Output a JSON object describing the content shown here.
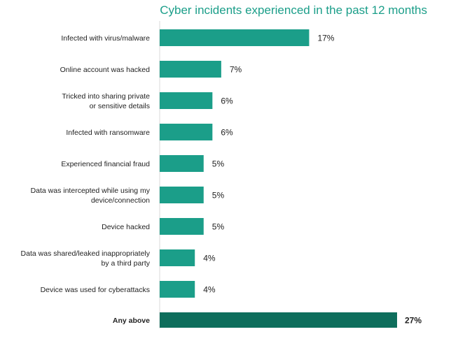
{
  "chart_data": {
    "type": "bar",
    "orientation": "horizontal",
    "title": "Cyber incidents experienced in the past 12 months",
    "value_suffix": "%",
    "xlim": [
      0,
      27
    ],
    "colors": {
      "bar": "#1b9e89",
      "highlight": "#0e6e5c",
      "title": "#1b9e89"
    },
    "categories": [
      [
        "Infected with virus/malware"
      ],
      [
        "Online account was hacked"
      ],
      [
        "Tricked into sharing private",
        "or sensitive details"
      ],
      [
        "Infected with ransomware"
      ],
      [
        "Experienced financial fraud"
      ],
      [
        "Data was intercepted while using my",
        "device/connection"
      ],
      [
        "Device hacked"
      ],
      [
        "Data was shared/leaked inappropriately",
        "by a third party"
      ],
      [
        "Device was used for cyberattacks"
      ],
      [
        "Any above"
      ]
    ],
    "values": [
      17,
      7,
      6,
      6,
      5,
      5,
      5,
      4,
      4,
      27
    ],
    "highlight_index": 9
  }
}
